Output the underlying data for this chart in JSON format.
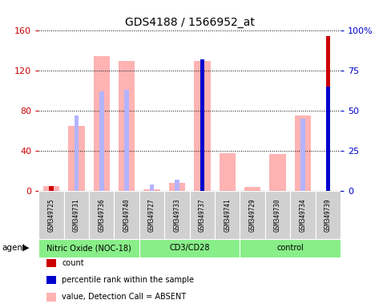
{
  "title": "GDS4188 / 1566952_at",
  "samples": [
    "GSM349725",
    "GSM349731",
    "GSM349736",
    "GSM349740",
    "GSM349727",
    "GSM349733",
    "GSM349737",
    "GSM349741",
    "GSM349729",
    "GSM349730",
    "GSM349734",
    "GSM349739"
  ],
  "groups": [
    {
      "label": "Nitric Oxide (NOC-18)",
      "start": 0,
      "end": 4
    },
    {
      "label": "CD3/CD28",
      "start": 4,
      "end": 8
    },
    {
      "label": "control",
      "start": 8,
      "end": 12
    }
  ],
  "value_absent": [
    5,
    65,
    135,
    130,
    2,
    8,
    130,
    38,
    4,
    37,
    75,
    0
  ],
  "rank_absent_pct": [
    2,
    47,
    62,
    63,
    4,
    7,
    52,
    0,
    0,
    0,
    45,
    0
  ],
  "count": [
    5,
    0,
    0,
    0,
    0,
    0,
    0,
    0,
    0,
    0,
    0,
    155
  ],
  "percentile_rank": [
    0,
    0,
    0,
    0,
    0,
    0,
    82,
    0,
    0,
    0,
    0,
    65
  ],
  "ylim_left": [
    0,
    160
  ],
  "ylim_right": [
    0,
    100
  ],
  "yticks_left": [
    0,
    40,
    80,
    120,
    160
  ],
  "yticks_right": [
    0,
    25,
    50,
    75,
    100
  ],
  "yticklabels_right": [
    "0",
    "25",
    "50",
    "75",
    "100%"
  ],
  "color_value_absent": "#ffb3b3",
  "color_rank_absent": "#b3b3ff",
  "color_count": "#cc0000",
  "color_percentile": "#0000cc",
  "tick_color_left": "#cc0000",
  "tick_color_right": "#0000cc",
  "group_color": "#88ee88",
  "sample_bg": "#d0d0d0"
}
